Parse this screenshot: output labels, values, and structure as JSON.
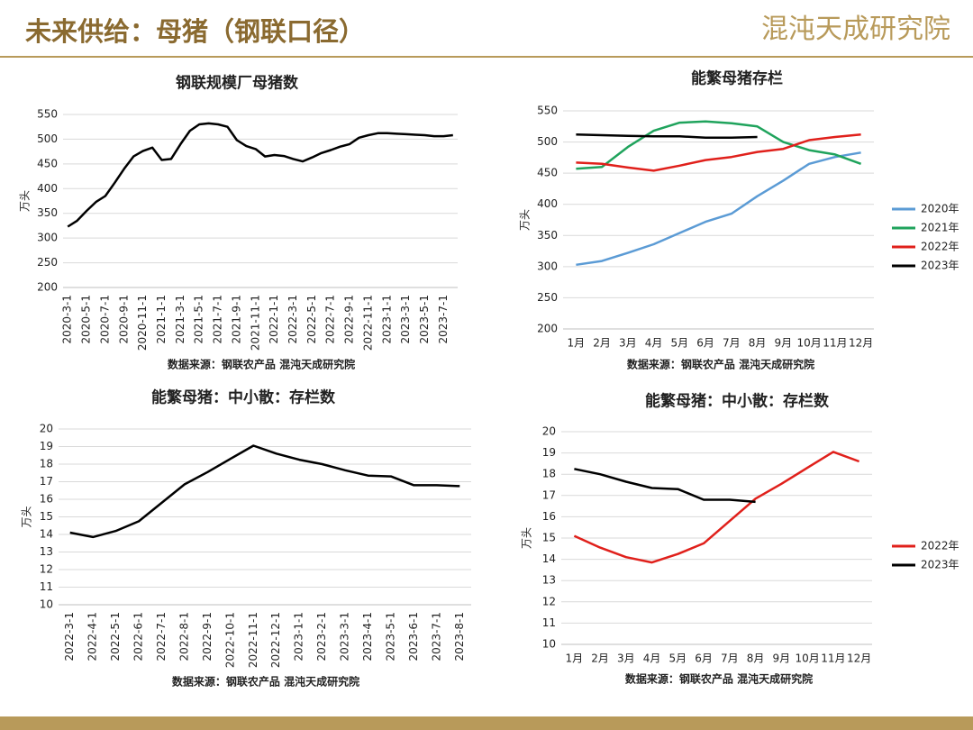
{
  "header": {
    "title": "未来供给：母猪（钢联口径）",
    "logo": "混沌天成研究院"
  },
  "chart_data": [
    {
      "type": "line",
      "title": "钢联规模厂母猪数",
      "ylabel": "万头",
      "note": "数据来源：钢联农产品 混沌天成研究院",
      "categories": [
        "2020-3-1",
        null,
        "2020-5-1",
        null,
        "2020-7-1",
        null,
        "2020-9-1",
        null,
        "2020-11-1",
        null,
        "2021-1-1",
        null,
        "2021-3-1",
        null,
        "2021-5-1",
        null,
        "2021-7-1",
        null,
        "2021-9-1",
        null,
        "2021-11-1",
        null,
        "2022-1-1",
        null,
        "2022-3-1",
        null,
        "2022-5-1",
        null,
        "2022-7-1",
        null,
        "2022-9-1",
        null,
        "2022-11-1",
        null,
        "2023-1-1",
        null,
        "2023-3-1",
        null,
        "2023-5-1",
        null,
        "2023-7-1",
        null
      ],
      "values": [
        323,
        335,
        355,
        373,
        385,
        412,
        440,
        465,
        476,
        483,
        458,
        460,
        490,
        517,
        530,
        532,
        530,
        525,
        498,
        486,
        480,
        465,
        468,
        466,
        460,
        455,
        463,
        472,
        478,
        485,
        490,
        503,
        508,
        512,
        512,
        511,
        510,
        509,
        508,
        506,
        506,
        508
      ],
      "color": "#000000",
      "ylim": [
        200,
        550
      ],
      "yticks": [
        200,
        250,
        300,
        350,
        400,
        450,
        500,
        550
      ],
      "grid": true
    },
    {
      "type": "line",
      "title": "能繁母猪存栏",
      "ylabel": "万头",
      "note": "数据来源：钢联农产品 混沌天成研究院",
      "categories": [
        "1月",
        "2月",
        "3月",
        "4月",
        "5月",
        "6月",
        "7月",
        "8月",
        "9月",
        "10月",
        "11月",
        "12月"
      ],
      "series": [
        {
          "name": "2020年",
          "color": "#5b9bd5",
          "values": [
            303,
            309,
            322,
            336,
            354,
            372,
            385,
            413,
            438,
            465,
            476,
            483
          ]
        },
        {
          "name": "2021年",
          "color": "#1fa35c",
          "values": [
            457,
            460,
            492,
            518,
            531,
            533,
            530,
            525,
            500,
            487,
            480,
            465
          ]
        },
        {
          "name": "2022年",
          "color": "#e0201b",
          "values": [
            467,
            465,
            459,
            454,
            462,
            471,
            476,
            484,
            489,
            503,
            508,
            512
          ]
        },
        {
          "name": "2023年",
          "color": "#000000",
          "values": [
            512,
            511,
            510,
            509,
            509,
            507,
            507,
            508,
            null,
            null,
            null,
            null
          ]
        }
      ],
      "ylim": [
        200,
        550
      ],
      "yticks": [
        200,
        250,
        300,
        350,
        400,
        450,
        500,
        550
      ],
      "grid": true,
      "legend": "right"
    },
    {
      "type": "line",
      "title": "能繁母猪：中小散：存栏数",
      "ylabel": "万头",
      "note": "数据来源：钢联农产品 混沌天成研究院",
      "categories": [
        "2022-3-1",
        "2022-4-1",
        "2022-5-1",
        "2022-6-1",
        "2022-7-1",
        "2022-8-1",
        "2022-9-1",
        "2022-10-1",
        "2022-11-1",
        "2022-12-1",
        "2023-1-1",
        "2023-2-1",
        "2023-3-1",
        "2023-4-1",
        "2023-5-1",
        "2023-6-1",
        "2023-7-1",
        "2023-8-1"
      ],
      "values": [
        14.1,
        13.85,
        14.2,
        14.75,
        15.8,
        16.85,
        17.55,
        18.3,
        19.05,
        18.6,
        18.25,
        18.0,
        17.65,
        17.35,
        17.3,
        16.8,
        16.8,
        16.75
      ],
      "color": "#000000",
      "ylim": [
        10,
        20
      ],
      "yticks": [
        10,
        11,
        12,
        13,
        14,
        15,
        16,
        17,
        18,
        19,
        20
      ],
      "grid": true
    },
    {
      "type": "line",
      "title": "能繁母猪：中小散：存栏数",
      "ylabel": "万头",
      "note": "数据来源：钢联农产品 混沌天成研究院",
      "categories": [
        "1月",
        "2月",
        "3月",
        "4月",
        "5月",
        "6月",
        "7月",
        "8月",
        "9月",
        "10月",
        "11月",
        "12月"
      ],
      "series": [
        {
          "name": "2022年",
          "color": "#e0201b",
          "values": [
            15.1,
            14.55,
            14.1,
            13.85,
            14.25,
            14.75,
            15.8,
            16.85,
            17.55,
            18.3,
            19.05,
            18.6
          ]
        },
        {
          "name": "2023年",
          "color": "#000000",
          "values": [
            18.25,
            18.0,
            17.65,
            17.35,
            17.3,
            16.8,
            16.8,
            16.7,
            null,
            null,
            null,
            null
          ]
        }
      ],
      "ylim": [
        10,
        20
      ],
      "yticks": [
        10,
        11,
        12,
        13,
        14,
        15,
        16,
        17,
        18,
        19,
        20
      ],
      "grid": true,
      "legend": "right"
    }
  ]
}
